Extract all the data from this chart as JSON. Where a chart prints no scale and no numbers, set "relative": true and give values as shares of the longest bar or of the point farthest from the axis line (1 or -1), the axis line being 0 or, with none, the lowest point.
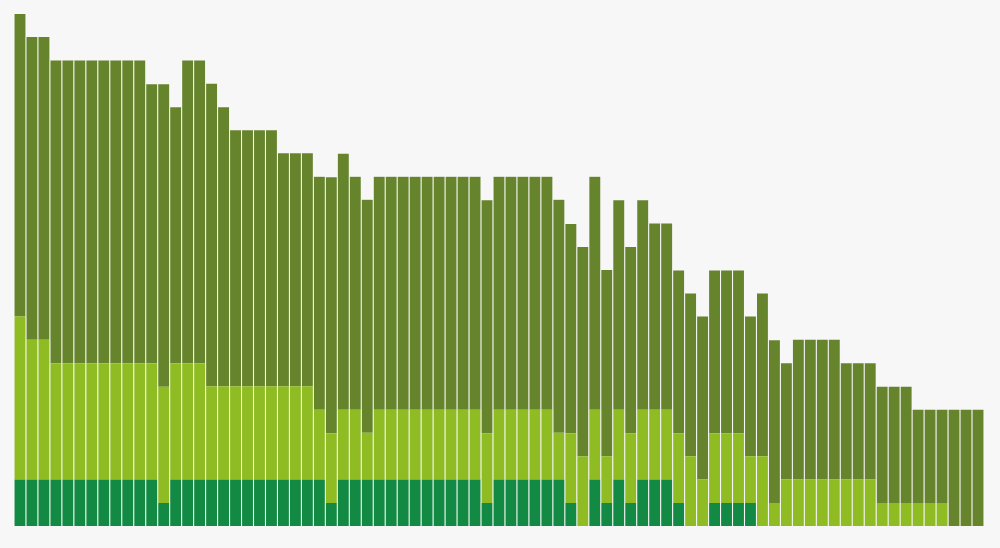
{
  "chart_data": {
    "type": "bar",
    "stacked": true,
    "relative": true,
    "legend": false,
    "categories": [
      null,
      null,
      null,
      null,
      null,
      null,
      null,
      null,
      null,
      null,
      null,
      null,
      null,
      null,
      null,
      null,
      null,
      null,
      null,
      null,
      null,
      null,
      null,
      null,
      null,
      null,
      null,
      null,
      null,
      null,
      null,
      null,
      null,
      null,
      null,
      null,
      null,
      null,
      null,
      null,
      null,
      null,
      null,
      null,
      null,
      null,
      null,
      null,
      null,
      null,
      null,
      null,
      null,
      null,
      null,
      null,
      null,
      null,
      null,
      null,
      null,
      null,
      null,
      null,
      null,
      null,
      null,
      null,
      null,
      null,
      null,
      null,
      null,
      null,
      null,
      null,
      null,
      null,
      null,
      null,
      null
    ],
    "series": [
      {
        "color": "#138a43",
        "values": [
          0.091,
          0.091,
          0.091,
          0.091,
          0.091,
          0.091,
          0.091,
          0.091,
          0.091,
          0.091,
          0.091,
          0.091,
          0.045,
          0.091,
          0.091,
          0.091,
          0.091,
          0.091,
          0.091,
          0.091,
          0.091,
          0.091,
          0.091,
          0.091,
          0.091,
          0.091,
          0.045,
          0.091,
          0.091,
          0.091,
          0.091,
          0.091,
          0.091,
          0.091,
          0.091,
          0.091,
          0.091,
          0.091,
          0.091,
          0.045,
          0.091,
          0.091,
          0.091,
          0.091,
          0.091,
          0.091,
          0.045,
          0,
          0.091,
          0.045,
          0.091,
          0.045,
          0.091,
          0.091,
          0.091,
          0.045,
          0,
          0,
          0.045,
          0.045,
          0.045,
          0.045,
          0,
          0,
          0,
          0,
          0,
          0,
          0,
          0,
          0,
          0,
          0,
          0,
          0,
          0,
          0,
          0,
          0,
          0,
          0
        ]
      },
      {
        "color": "#8fbc23",
        "values": [
          0.318,
          0.273,
          0.273,
          0.227,
          0.227,
          0.227,
          0.227,
          0.227,
          0.227,
          0.227,
          0.227,
          0.227,
          0.227,
          0.227,
          0.227,
          0.227,
          0.182,
          0.182,
          0.182,
          0.182,
          0.182,
          0.182,
          0.182,
          0.182,
          0.182,
          0.136,
          0.136,
          0.136,
          0.136,
          0.091,
          0.136,
          0.136,
          0.136,
          0.136,
          0.136,
          0.136,
          0.136,
          0.136,
          0.136,
          0.136,
          0.136,
          0.136,
          0.136,
          0.136,
          0.136,
          0.091,
          0.136,
          0.136,
          0.136,
          0.091,
          0.136,
          0.136,
          0.136,
          0.136,
          0.136,
          0.136,
          0.136,
          0.091,
          0.136,
          0.136,
          0.136,
          0.091,
          0.136,
          0.045,
          0.091,
          0.091,
          0.091,
          0.091,
          0.091,
          0.091,
          0.091,
          0.091,
          0.045,
          0.045,
          0.045,
          0.045,
          0.045,
          0.045,
          0,
          0,
          0
        ]
      },
      {
        "color": "#66842c",
        "values": [
          0.591,
          0.591,
          0.591,
          0.591,
          0.591,
          0.591,
          0.591,
          0.591,
          0.591,
          0.591,
          0.591,
          0.545,
          0.591,
          0.5,
          0.591,
          0.591,
          0.591,
          0.545,
          0.5,
          0.5,
          0.5,
          0.5,
          0.455,
          0.455,
          0.455,
          0.455,
          0.5,
          0.5,
          0.455,
          0.455,
          0.455,
          0.455,
          0.455,
          0.455,
          0.455,
          0.455,
          0.455,
          0.455,
          0.455,
          0.455,
          0.455,
          0.455,
          0.455,
          0.455,
          0.455,
          0.455,
          0.409,
          0.409,
          0.455,
          0.364,
          0.409,
          0.364,
          0.409,
          0.364,
          0.364,
          0.318,
          0.318,
          0.318,
          0.318,
          0.318,
          0.318,
          0.273,
          0.318,
          0.318,
          0.227,
          0.273,
          0.273,
          0.273,
          0.273,
          0.227,
          0.227,
          0.227,
          0.227,
          0.227,
          0.227,
          0.182,
          0.182,
          0.182,
          0.227,
          0.227,
          0.227
        ]
      }
    ]
  }
}
